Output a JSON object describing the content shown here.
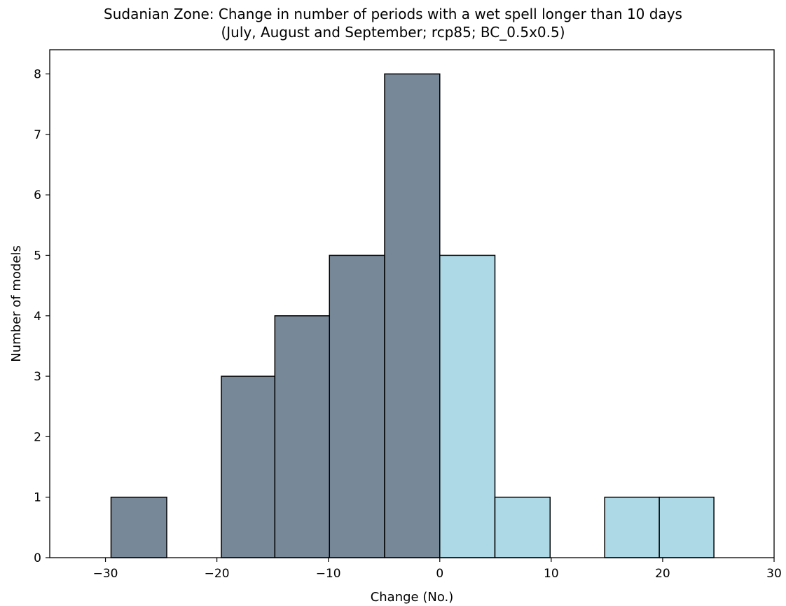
{
  "chart_data": {
    "type": "bar",
    "title": "Sudanian Zone: Change in number of periods with a wet spell longer than 10 days",
    "subtitle": "(July, August and September; rcp85; BC_0.5x0.5)",
    "xlabel": "Change (No.)",
    "ylabel": "Number of models",
    "xlim": [
      -35,
      30
    ],
    "ylim": [
      0,
      8.4
    ],
    "xticks": [
      -30,
      -20,
      -10,
      0,
      10,
      20,
      30
    ],
    "xtick_labels": [
      "−30",
      "−20",
      "−10",
      "0",
      "10",
      "20",
      "30"
    ],
    "yticks": [
      0,
      1,
      2,
      3,
      4,
      5,
      6,
      7,
      8
    ],
    "ytick_labels": [
      "0",
      "1",
      "2",
      "3",
      "4",
      "5",
      "6",
      "7",
      "8"
    ],
    "grid": false,
    "bins": [
      {
        "x0": -29.5,
        "x1": -24.5,
        "count": 1
      },
      {
        "x0": -19.6,
        "x1": -14.8,
        "count": 3
      },
      {
        "x0": -14.8,
        "x1": -9.9,
        "count": 4
      },
      {
        "x0": -9.9,
        "x1": -4.95,
        "count": 5
      },
      {
        "x0": -4.95,
        "x1": 0,
        "count": 8
      },
      {
        "x0": 0,
        "x1": 4.95,
        "count": 5
      },
      {
        "x0": 4.95,
        "x1": 9.9,
        "count": 1
      },
      {
        "x0": 14.8,
        "x1": 19.7,
        "count": 1
      },
      {
        "x0": 19.7,
        "x1": 24.6,
        "count": 1
      }
    ],
    "colors": {
      "negative": "#778899",
      "positive": "#add8e6",
      "edge": "#000000"
    }
  }
}
